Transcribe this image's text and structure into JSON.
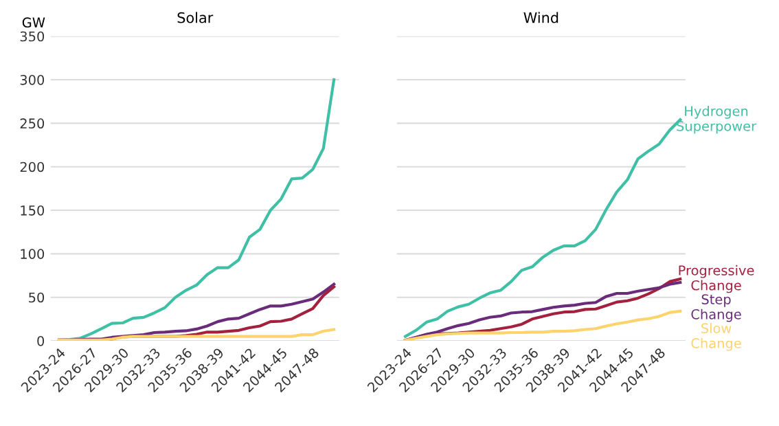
{
  "chart_data": [
    {
      "type": "line",
      "title": "Solar",
      "ylabel": "GW",
      "categories": [
        "2023-24",
        null,
        null,
        "2026-27",
        null,
        null,
        "2029-30",
        null,
        null,
        "2032-33",
        null,
        null,
        "2035-36",
        null,
        null,
        "2038-39",
        null,
        null,
        "2041-42",
        null,
        null,
        "2044-45",
        null,
        null,
        "2047-48",
        null,
        null
      ],
      "ylim": [
        0,
        350
      ],
      "yticks": [
        0,
        50,
        100,
        150,
        200,
        250,
        300,
        350
      ],
      "grid": "y",
      "legend": false,
      "marker": "none",
      "line_style": "solid",
      "series": [
        {
          "color": "#3fbfa6",
          "values": [
            1,
            1.5,
            3,
            8,
            14,
            20,
            20.5,
            26,
            27,
            32,
            38,
            50,
            58,
            64,
            76,
            84,
            84,
            93,
            119,
            128,
            150,
            163,
            186,
            187,
            197,
            221,
            300
          ]
        },
        {
          "color": "#6a2c7a",
          "values": [
            1,
            1,
            1.5,
            2,
            2,
            4,
            5,
            6,
            7,
            9.5,
            10,
            11,
            11.5,
            13.5,
            17,
            22,
            25,
            26,
            31,
            36,
            40,
            40,
            42,
            45,
            48,
            56,
            65
          ]
        },
        {
          "color": "#a3213f",
          "values": [
            1,
            1,
            1,
            1,
            1,
            2,
            4.5,
            5,
            5,
            5,
            5,
            5,
            6,
            7.5,
            10,
            10,
            11,
            12,
            15,
            17,
            22,
            22.5,
            25,
            31,
            37,
            52,
            62
          ]
        },
        {
          "color": "#fdd36b",
          "values": [
            1,
            1,
            1,
            1,
            1,
            2,
            4,
            5,
            5,
            5,
            5,
            5,
            5,
            5,
            5,
            5,
            5,
            5,
            5,
            5,
            5,
            5,
            5,
            7,
            7,
            11,
            13
          ]
        }
      ]
    },
    {
      "type": "line",
      "title": "Wind",
      "categories": [
        "2023-24",
        null,
        null,
        "2026-27",
        null,
        null,
        "2029-30",
        null,
        null,
        "2032-33",
        null,
        null,
        "2035-36",
        null,
        null,
        "2038-39",
        null,
        null,
        "2041-42",
        null,
        null,
        "2044-45",
        null,
        null,
        "2047-48",
        null,
        null
      ],
      "ylim": [
        0,
        350
      ],
      "yticks": [
        0,
        50,
        100,
        150,
        200,
        250,
        300,
        350
      ],
      "tick_labels": "x",
      "grid": "y",
      "legend": false,
      "marker": "none",
      "line_style": "solid",
      "series": [
        {
          "name": "Hydrogen\nSuperpower",
          "color": "#3fbfa6",
          "values": [
            5,
            12,
            21.5,
            25,
            34,
            39,
            42,
            49,
            55,
            58,
            68,
            81,
            85,
            96,
            104,
            109,
            109,
            115,
            128,
            151,
            171,
            185,
            209,
            218,
            226,
            242,
            254
          ]
        },
        {
          "name": "Progressive\nChange",
          "color": "#a3213f",
          "values": [
            0.5,
            4,
            7,
            8,
            8.5,
            9,
            10,
            11,
            12,
            14,
            16,
            19,
            25,
            28,
            31,
            33,
            33.5,
            36,
            36.5,
            40.5,
            44.5,
            46,
            49,
            54,
            60,
            68,
            71
          ]
        },
        {
          "name": "Step\nChange",
          "color": "#6a2c7a",
          "values": [
            0.5,
            4,
            7.5,
            10,
            14,
            17.5,
            20,
            24,
            27,
            28.5,
            32,
            33,
            33.5,
            36,
            38.5,
            40,
            41,
            43,
            44,
            51,
            54.5,
            54.5,
            57,
            59,
            61,
            65,
            67
          ]
        },
        {
          "name": "Slow\nChange",
          "color": "#fdd36b",
          "values": [
            0.5,
            3,
            5,
            7,
            8,
            8.5,
            9,
            9,
            9,
            9,
            9.5,
            9.5,
            10,
            10,
            11,
            11,
            11.5,
            13,
            14,
            17,
            19.5,
            21.5,
            24,
            25.5,
            28,
            32.5,
            34
          ]
        }
      ]
    }
  ]
}
